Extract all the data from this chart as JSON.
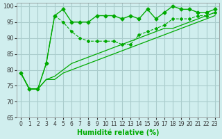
{
  "title": "",
  "xlabel": "Humidité relative (%)",
  "ylabel": "",
  "xlim": [
    -0.5,
    23.5
  ],
  "ylim": [
    65,
    101
  ],
  "yticks": [
    65,
    70,
    75,
    80,
    85,
    90,
    95,
    100
  ],
  "xticks": [
    0,
    1,
    2,
    3,
    4,
    5,
    6,
    7,
    8,
    9,
    10,
    11,
    12,
    13,
    14,
    15,
    16,
    17,
    18,
    19,
    20,
    21,
    22,
    23
  ],
  "bg_color": "#d0eeee",
  "grid_color": "#aacccc",
  "line_color": "#00aa00",
  "line1": [
    79,
    74,
    74,
    82,
    97,
    99,
    95,
    95,
    95,
    97,
    97,
    97,
    96,
    97,
    96,
    99,
    96,
    98,
    100,
    99,
    99,
    98,
    98,
    99
  ],
  "line2": [
    79,
    74,
    74,
    82,
    97,
    95,
    92,
    90,
    89,
    89,
    89,
    89,
    88,
    88,
    91,
    92,
    93,
    94,
    96,
    96,
    96,
    97,
    97,
    98
  ],
  "line3": [
    79,
    74,
    74,
    77,
    78,
    80,
    82,
    83,
    84,
    85,
    86,
    87,
    88,
    89,
    90,
    91,
    92,
    93,
    93,
    94,
    95,
    96,
    97,
    98
  ],
  "line4": [
    79,
    74,
    74,
    77,
    77,
    79,
    80,
    81,
    82,
    83,
    84,
    85,
    86,
    87,
    88,
    89,
    90,
    91,
    92,
    93,
    94,
    95,
    96,
    97
  ]
}
